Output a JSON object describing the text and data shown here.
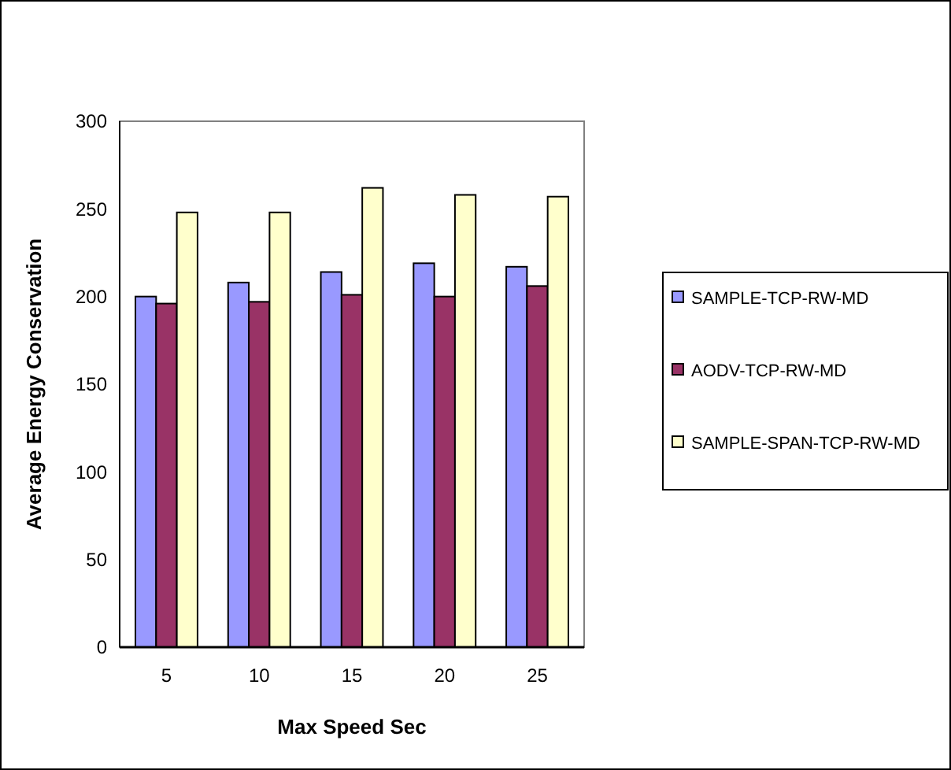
{
  "chart_data": {
    "type": "bar",
    "xlabel": "Max Speed Sec",
    "ylabel": "Average Energy Conservation",
    "categories": [
      "5",
      "10",
      "15",
      "20",
      "25"
    ],
    "series": [
      {
        "name": "SAMPLE-TCP-RW-MD",
        "color": "#9999ff",
        "values": [
          200,
          208,
          214,
          219,
          217
        ]
      },
      {
        "name": "AODV-TCP-RW-MD",
        "color": "#993366",
        "values": [
          196,
          197,
          201,
          200,
          206
        ]
      },
      {
        "name": "SAMPLE-SPAN-TCP-RW-MD",
        "color": "#ffffcc",
        "values": [
          248,
          248,
          262,
          258,
          257
        ]
      }
    ],
    "ylim": [
      0,
      300
    ],
    "yticks": [
      0,
      50,
      100,
      150,
      200,
      250,
      300
    ],
    "grid": false,
    "legend": "right"
  }
}
